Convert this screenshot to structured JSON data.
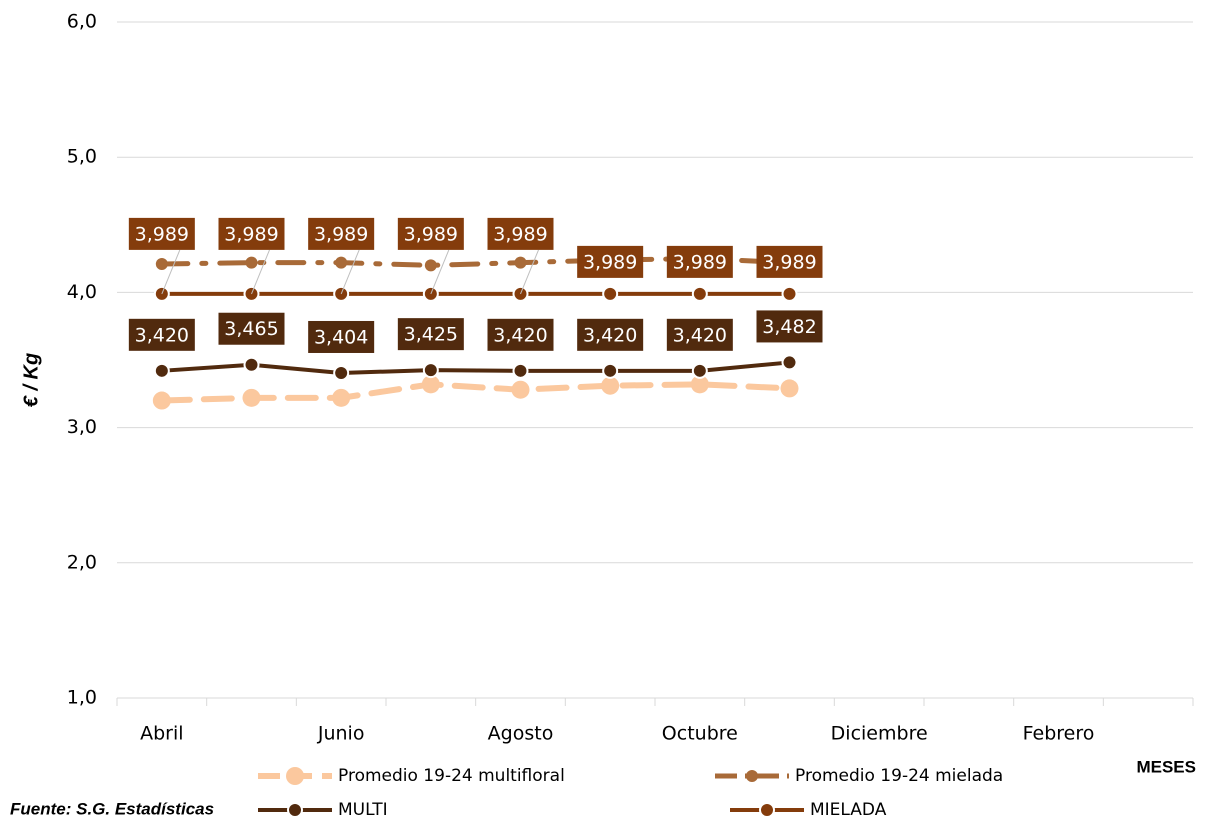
{
  "chart_data": {
    "type": "line",
    "y_label": "€ / Kg",
    "x_label": "MESES",
    "source": "Fuente: S.G. Estadísticas",
    "categories": [
      "Abril",
      null,
      "Junio",
      null,
      "Agosto",
      null,
      "Octubre",
      null,
      "Diciembre",
      null,
      "Febrero",
      null
    ],
    "ylim": [
      1,
      6
    ],
    "yticks": [
      {
        "value": 1,
        "label": "1,0"
      },
      {
        "value": 2,
        "label": "2,0"
      },
      {
        "value": 3,
        "label": "3,0"
      },
      {
        "value": 4,
        "label": "4,0"
      },
      {
        "value": 5,
        "label": "5,0"
      },
      {
        "value": 6,
        "label": "6,0"
      }
    ],
    "grid": true,
    "legend": "bottom",
    "series": [
      {
        "name": "Promedio 19-24 multifloral",
        "color": "#fbc89e",
        "dash": "dashed",
        "marker": "large",
        "values": [
          3.2,
          3.22,
          3.22,
          3.32,
          3.28,
          3.31,
          3.32,
          3.29,
          null,
          null,
          null,
          null
        ]
      },
      {
        "name": "Promedio 19-24 mielada",
        "color": "#a86a38",
        "dash": "dash-dot",
        "marker": "small",
        "values": [
          4.21,
          4.22,
          4.22,
          4.2,
          4.22,
          4.24,
          4.25,
          4.22,
          null,
          null,
          null,
          null
        ]
      },
      {
        "name": "MULTI",
        "color": "#512a0e",
        "dash": "solid",
        "marker": "outlined",
        "values": [
          3.42,
          3.465,
          3.404,
          3.425,
          3.42,
          3.42,
          3.42,
          3.482,
          null,
          null,
          null,
          null
        ],
        "value_labels": [
          "3,420",
          "3,465",
          "3,404",
          "3,425",
          "3,420",
          "3,420",
          "3,420",
          "3,482",
          null,
          null,
          null,
          null
        ]
      },
      {
        "name": "MIELADA",
        "color": "#843c0c",
        "dash": "solid",
        "marker": "outlined",
        "values": [
          3.989,
          3.989,
          3.989,
          3.989,
          3.989,
          3.989,
          3.989,
          3.989,
          null,
          null,
          null,
          null
        ],
        "value_labels": [
          "3,989",
          "3,989",
          "3,989",
          "3,989",
          "3,989",
          "3,989",
          "3,989",
          "3,989",
          null,
          null,
          null,
          null
        ]
      }
    ]
  }
}
